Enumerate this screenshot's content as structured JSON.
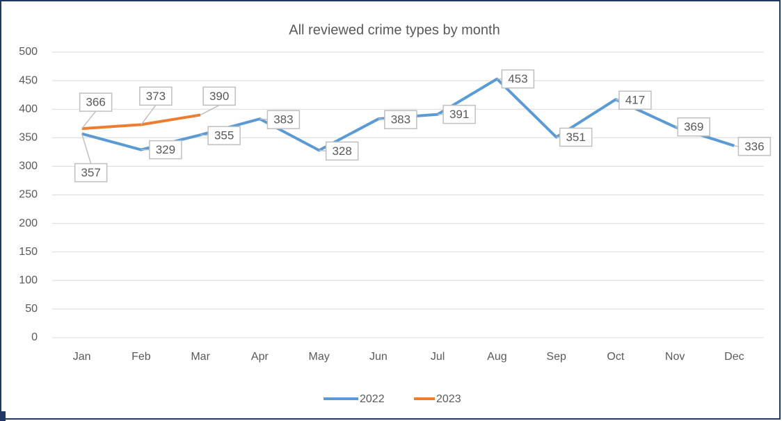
{
  "chart_data": {
    "type": "line",
    "title": "All reviewed crime types by month",
    "categories": [
      "Jan",
      "Feb",
      "Mar",
      "Apr",
      "May",
      "Jun",
      "Jul",
      "Aug",
      "Sep",
      "Oct",
      "Nov",
      "Dec"
    ],
    "series": [
      {
        "name": "2022",
        "color": "#5b9bd5",
        "values": [
          357,
          329,
          355,
          383,
          328,
          383,
          391,
          453,
          351,
          417,
          369,
          336
        ]
      },
      {
        "name": "2023",
        "color": "#ed7d31",
        "values": [
          366,
          373,
          390,
          null,
          null,
          null,
          null,
          null,
          null,
          null,
          null,
          null
        ]
      }
    ],
    "ylim": [
      0,
      500
    ],
    "yticks": [
      0,
      50,
      100,
      150,
      200,
      250,
      300,
      350,
      400,
      450,
      500
    ],
    "grid": true,
    "legend": "bottom"
  }
}
